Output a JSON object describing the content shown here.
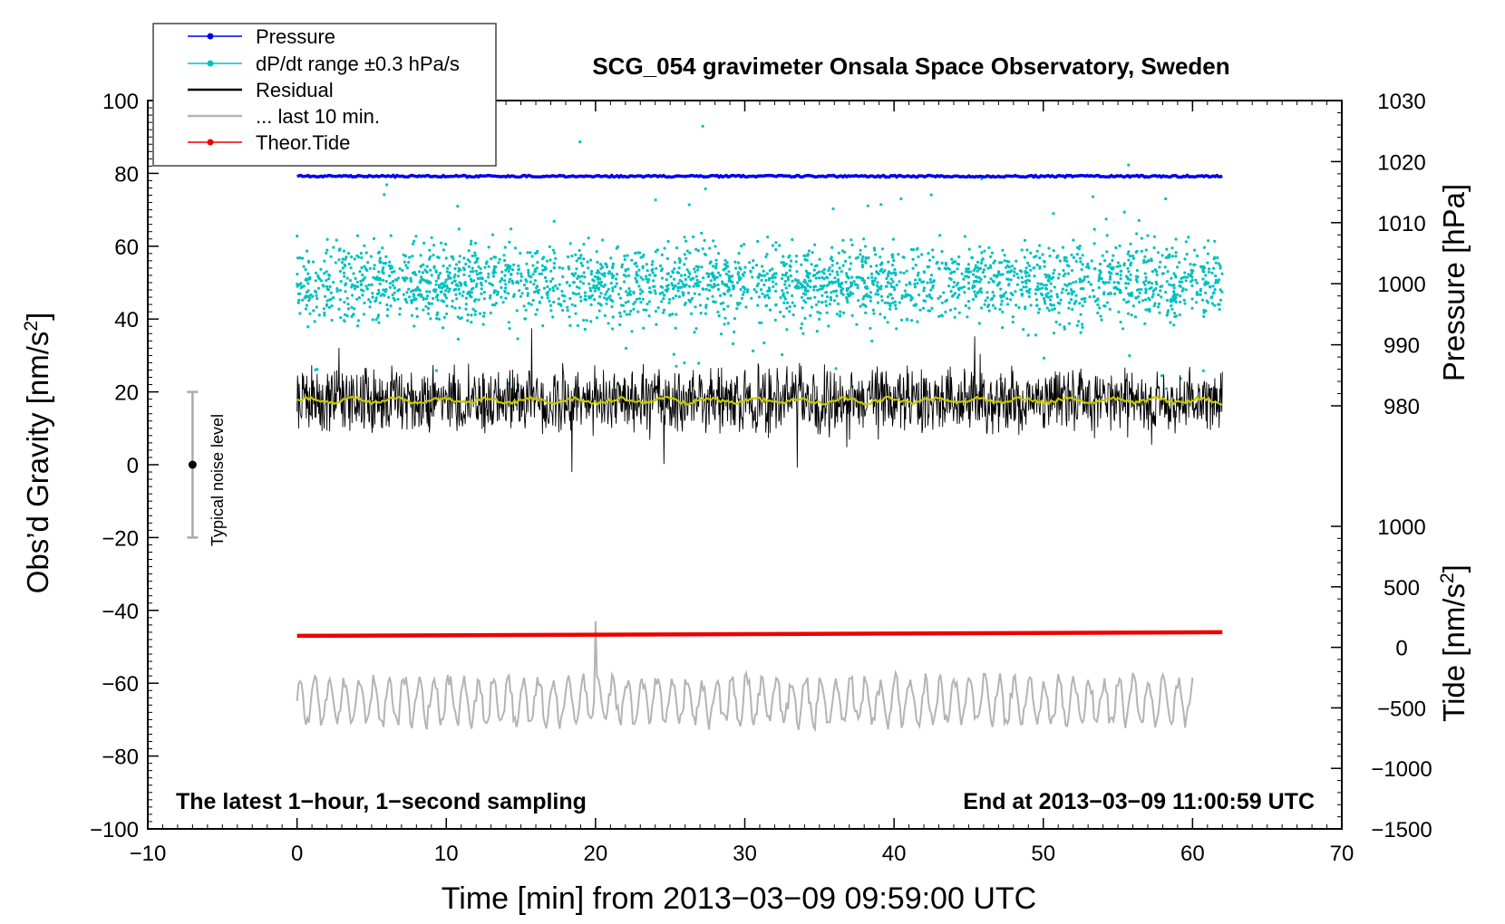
{
  "chart_data": {
    "type": "line",
    "title": "SCG_054 gravimeter Onsala Space Observatory, Sweden",
    "xlabel": "Time [min] from 2013−03−09 09:59:00 UTC",
    "ylabel_left": "Obs’d Gravity [nm/s",
    "ylabel_left_sup": "2",
    "ylabel_left_end": "]",
    "ylabel_right_top": "Pressure [hPa]",
    "ylabel_right_bottom": "Tide [nm/s",
    "ylabel_right_bottom_sup": "2",
    "ylabel_right_bottom_end": "]",
    "xlim": [
      -10,
      70
    ],
    "ylim": [
      -100,
      100
    ],
    "pressure_axis": {
      "lim": [
        980,
        1030
      ],
      "ticks": [
        980,
        990,
        1000,
        1010,
        1020,
        1030
      ]
    },
    "tide_axis": {
      "lim": [
        -1500,
        1000
      ],
      "ticks": [
        -1500,
        -1000,
        -500,
        0,
        500,
        1000
      ]
    },
    "x_ticks": [
      -10,
      0,
      10,
      20,
      30,
      40,
      50,
      60,
      70
    ],
    "x_tick_labels": [
      "−10",
      "0",
      "10",
      "20",
      "30",
      "40",
      "50",
      "60",
      "70"
    ],
    "y_ticks": [
      -100,
      -80,
      -60,
      -40,
      -20,
      0,
      20,
      40,
      60,
      80,
      100
    ],
    "y_tick_labels": [
      "−100",
      "−80",
      "−60",
      "−40",
      "−20",
      "0",
      "20",
      "40",
      "60",
      "80",
      "100"
    ],
    "pressure_tick_labels": [
      "980",
      "990",
      "1000",
      "1010",
      "1020",
      "1030"
    ],
    "tide_tick_labels": [
      "−1500",
      "−1000",
      "−500",
      "0",
      "500",
      "1000"
    ],
    "colors": {
      "pressure": "#0000ee",
      "dpdt": "#00c0c0",
      "residual": "#000000",
      "last10": "#b4b4b4",
      "tide": "#ee0000",
      "smooth": "#c8c800"
    },
    "series": [
      {
        "name": "Pressure",
        "axis": "pressure",
        "x_range": [
          0,
          62
        ],
        "level": 1017.6,
        "noise": 0.15
      },
      {
        "name": "dP/dt range ±0.3 hPa/s",
        "axis": "left_offset",
        "x_range": [
          0,
          62
        ],
        "center": 50,
        "scatter": true
      },
      {
        "name": "Residual",
        "axis": "left",
        "x_range": [
          0,
          62
        ],
        "center": 17.5,
        "approx_range": [
          -5,
          36
        ]
      },
      {
        "name": "... last 10 min.",
        "axis": "left",
        "x_range": [
          0,
          60
        ],
        "center": -65,
        "approx_range": [
          -76,
          -43
        ]
      },
      {
        "name": "Theor.Tide",
        "axis": "tide",
        "x_range": [
          0,
          62
        ],
        "start": 95,
        "end": 125
      }
    ],
    "noise_bar": {
      "x": -7,
      "center": 0,
      "low": -20,
      "high": 20,
      "label": "Typical noise level"
    },
    "annotation_left": "The latest 1−hour, 1−second sampling",
    "annotation_right": "End at 2013−03−09 11:00:59 UTC",
    "legend_position": "top-left"
  }
}
